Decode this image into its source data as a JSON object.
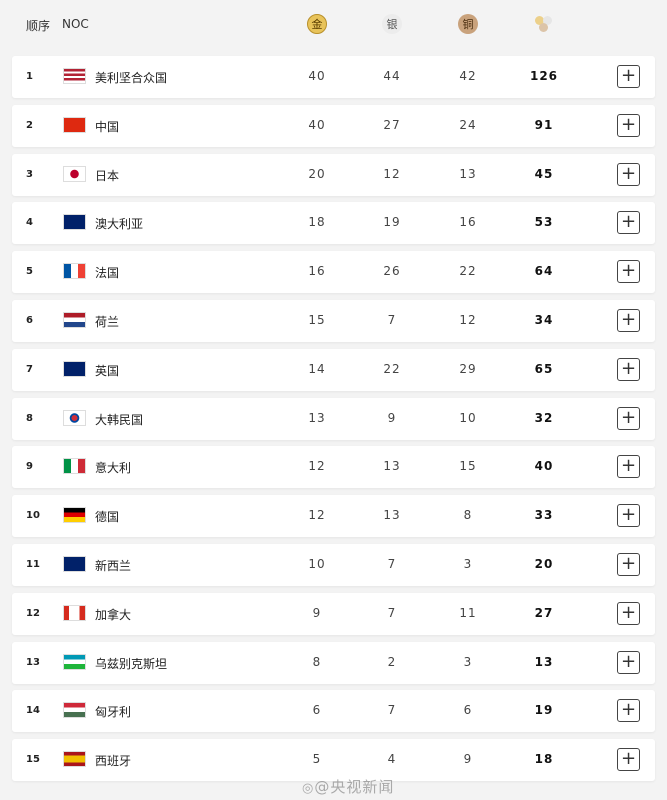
{
  "header": {
    "rank": "顺序",
    "noc": "NOC",
    "gold": "金",
    "silver": "银",
    "bronze": "铜",
    "total_icon": "medals-total-icon"
  },
  "colors": {
    "gold": "#e8c35a",
    "silver": "#e2e2e2",
    "bronze": "#c9a27c"
  },
  "rows": [
    {
      "rank": "1",
      "name": "美利坚合众国",
      "flag": "usa",
      "gold": "40",
      "silver": "44",
      "bronze": "42",
      "total": "126"
    },
    {
      "rank": "2",
      "name": "中国",
      "flag": "china",
      "gold": "40",
      "silver": "27",
      "bronze": "24",
      "total": "91"
    },
    {
      "rank": "3",
      "name": "日本",
      "flag": "japan",
      "gold": "20",
      "silver": "12",
      "bronze": "13",
      "total": "45"
    },
    {
      "rank": "4",
      "name": "澳大利亚",
      "flag": "australia",
      "gold": "18",
      "silver": "19",
      "bronze": "16",
      "total": "53"
    },
    {
      "rank": "5",
      "name": "法国",
      "flag": "france",
      "gold": "16",
      "silver": "26",
      "bronze": "22",
      "total": "64"
    },
    {
      "rank": "6",
      "name": "荷兰",
      "flag": "netherlands",
      "gold": "15",
      "silver": "7",
      "bronze": "12",
      "total": "34"
    },
    {
      "rank": "7",
      "name": "英国",
      "flag": "uk",
      "gold": "14",
      "silver": "22",
      "bronze": "29",
      "total": "65"
    },
    {
      "rank": "8",
      "name": "大韩民国",
      "flag": "korea",
      "gold": "13",
      "silver": "9",
      "bronze": "10",
      "total": "32"
    },
    {
      "rank": "9",
      "name": "意大利",
      "flag": "italy",
      "gold": "12",
      "silver": "13",
      "bronze": "15",
      "total": "40"
    },
    {
      "rank": "10",
      "name": "德国",
      "flag": "germany",
      "gold": "12",
      "silver": "13",
      "bronze": "8",
      "total": "33"
    },
    {
      "rank": "11",
      "name": "新西兰",
      "flag": "newzealand",
      "gold": "10",
      "silver": "7",
      "bronze": "3",
      "total": "20"
    },
    {
      "rank": "12",
      "name": "加拿大",
      "flag": "canada",
      "gold": "9",
      "silver": "7",
      "bronze": "11",
      "total": "27"
    },
    {
      "rank": "13",
      "name": "乌兹别克斯坦",
      "flag": "uzbekistan",
      "gold": "8",
      "silver": "2",
      "bronze": "3",
      "total": "13"
    },
    {
      "rank": "14",
      "name": "匈牙利",
      "flag": "hungary",
      "gold": "6",
      "silver": "7",
      "bronze": "6",
      "total": "19"
    },
    {
      "rank": "15",
      "name": "西班牙",
      "flag": "spain",
      "gold": "5",
      "silver": "4",
      "bronze": "9",
      "total": "18"
    }
  ],
  "expand_label": "+",
  "watermark": "@央视新闻"
}
